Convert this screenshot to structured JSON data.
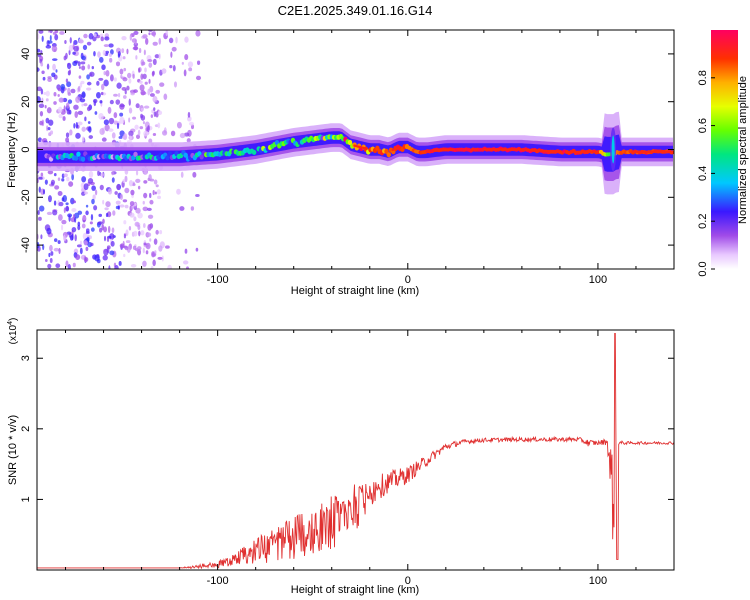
{
  "chart_data": [
    {
      "type": "heatmap",
      "title": "C2E1.2025.349.01.16.G14",
      "xlabel": "Height of straight line (km)",
      "ylabel": "Frequency (Hz)",
      "xlim": [
        -195,
        140
      ],
      "ylim": [
        -50,
        50
      ],
      "x_ticks": [
        -100,
        0,
        100
      ],
      "x_tick_labels": [
        "-100",
        "0",
        "100"
      ],
      "y_ticks": [
        -40,
        -20,
        0,
        20,
        40
      ],
      "y_tick_labels": [
        "-40",
        "-20",
        "0",
        "20",
        "40"
      ],
      "colorbar": {
        "label": "Normalized spectral amplitude",
        "range": [
          0,
          1
        ],
        "ticks": [
          0,
          0.2,
          0.4,
          0.6,
          0.8
        ],
        "tick_labels": [
          "0.0",
          "0.2",
          "0.4",
          "0.6",
          "0.8"
        ]
      },
      "ridge": {
        "height_km": [
          -195,
          -180,
          -160,
          -140,
          -120,
          -100,
          -90,
          -80,
          -70,
          -60,
          -50,
          -40,
          -35,
          -30,
          -25,
          -20,
          -15,
          -10,
          -5,
          0,
          5,
          10,
          20,
          40,
          60,
          80,
          90,
          100,
          105,
          108,
          110,
          120,
          140
        ],
        "frequency_hz": [
          -3,
          -3,
          -3,
          -3,
          -3,
          -2,
          -1,
          0,
          1.5,
          3,
          4,
          5,
          5,
          2,
          1,
          0,
          0,
          -1,
          1,
          1,
          -1,
          -1,
          0,
          0,
          0,
          -1,
          -1,
          -1,
          -2,
          -2,
          -1,
          -1,
          -1
        ],
        "amplitude": [
          0.2,
          0.25,
          0.25,
          0.3,
          0.35,
          0.4,
          0.45,
          0.45,
          0.5,
          0.5,
          0.5,
          0.5,
          0.55,
          0.75,
          0.8,
          0.85,
          0.85,
          0.85,
          0.9,
          0.85,
          0.85,
          0.9,
          0.95,
          0.95,
          0.95,
          0.95,
          0.9,
          0.9,
          0.6,
          0.55,
          0.85,
          0.9,
          0.9
        ]
      }
    },
    {
      "type": "line",
      "xlabel": "Height of straight line (km)",
      "ylabel": "SNR (10 * v/v)",
      "y_multiplier": "(x10",
      "y_multiplier_exp": "4",
      "y_multiplier_close": ")",
      "xlim": [
        -195,
        140
      ],
      "ylim": [
        0,
        3.4
      ],
      "x_ticks": [
        -100,
        0,
        100
      ],
      "x_tick_labels": [
        "-100",
        "0",
        "100"
      ],
      "y_ticks": [
        1,
        2,
        3
      ],
      "y_tick_labels": [
        "1",
        "2",
        "3"
      ],
      "color": "#e03030",
      "series": [
        {
          "name": "SNR",
          "x": [
            -195,
            -120,
            -110,
            -100,
            -90,
            -80,
            -70,
            -60,
            -50,
            -40,
            -30,
            -25,
            -20,
            -10,
            0,
            10,
            20,
            30,
            40,
            60,
            80,
            90,
            95,
            100,
            105,
            108,
            110,
            112,
            115,
            120,
            140
          ],
          "y": [
            0.03,
            0.03,
            0.05,
            0.08,
            0.15,
            0.25,
            0.35,
            0.45,
            0.55,
            0.7,
            0.85,
            0.95,
            1.1,
            1.25,
            1.35,
            1.55,
            1.75,
            1.82,
            1.84,
            1.85,
            1.85,
            1.85,
            1.8,
            1.8,
            1.82,
            1.0,
            1.8,
            1.8,
            1.8,
            1.8,
            1.8
          ],
          "noise": [
            0,
            0,
            0.03,
            0.05,
            0.1,
            0.2,
            0.25,
            0.3,
            0.35,
            0.4,
            0.4,
            0.35,
            0.2,
            0.15,
            0.12,
            0.08,
            0.05,
            0.03,
            0.03,
            0.03,
            0.03,
            0.03,
            0.05,
            0.03,
            0.05,
            0.8,
            0.05,
            0.03,
            0.02,
            0.02,
            0.02
          ]
        }
      ],
      "features": [
        {
          "x": 109,
          "y_max": 3.35,
          "y_min": 0.15
        }
      ]
    }
  ]
}
